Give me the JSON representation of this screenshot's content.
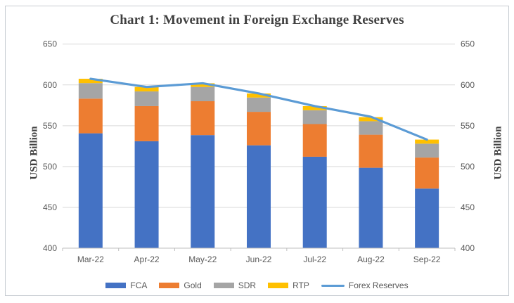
{
  "chart_data": {
    "type": "bar",
    "subtype": "stacked-column-with-line",
    "title": "Chart 1: Movement in Foreign Exchange Reserves",
    "categories": [
      "Mar-22",
      "Apr-22",
      "May-22",
      "Jun-22",
      "Jul-22",
      "Aug-22",
      "Sep-22"
    ],
    "series": [
      {
        "name": "FCA",
        "type": "bar",
        "color": "#4472C4",
        "values": [
          540.7,
          531.0,
          538.5,
          526.0,
          512.0,
          498.5,
          473.0
        ]
      },
      {
        "name": "Gold",
        "type": "bar",
        "color": "#ED7D31",
        "values": [
          42.5,
          43.0,
          41.5,
          41.0,
          40.0,
          40.5,
          38.0
        ]
      },
      {
        "name": "SDR",
        "type": "bar",
        "color": "#A5A5A5",
        "values": [
          19.0,
          18.0,
          17.5,
          17.5,
          17.0,
          16.5,
          17.0
        ]
      },
      {
        "name": "RTP",
        "type": "bar",
        "color": "#FFC000",
        "values": [
          5.3,
          5.5,
          4.5,
          5.0,
          5.0,
          5.0,
          5.0
        ]
      },
      {
        "name": "Forex Reserves",
        "type": "line",
        "color": "#5B9BD5",
        "values": [
          607.5,
          597.5,
          602.0,
          589.5,
          574.0,
          561.0,
          533.0
        ]
      }
    ],
    "xlabel": "",
    "ylabel": "USD Billion",
    "ylabel_right": "USD Billion",
    "y_axis": {
      "min": 400,
      "max": 650,
      "step": 50,
      "ticks": [
        400,
        450,
        500,
        550,
        600,
        650
      ]
    },
    "grid": true,
    "legend_position": "bottom",
    "colors": {
      "gridline": "#D9D9D9",
      "axis_line": "#BFBFBF",
      "tick_text": "#595959",
      "title_text": "#404040"
    }
  }
}
